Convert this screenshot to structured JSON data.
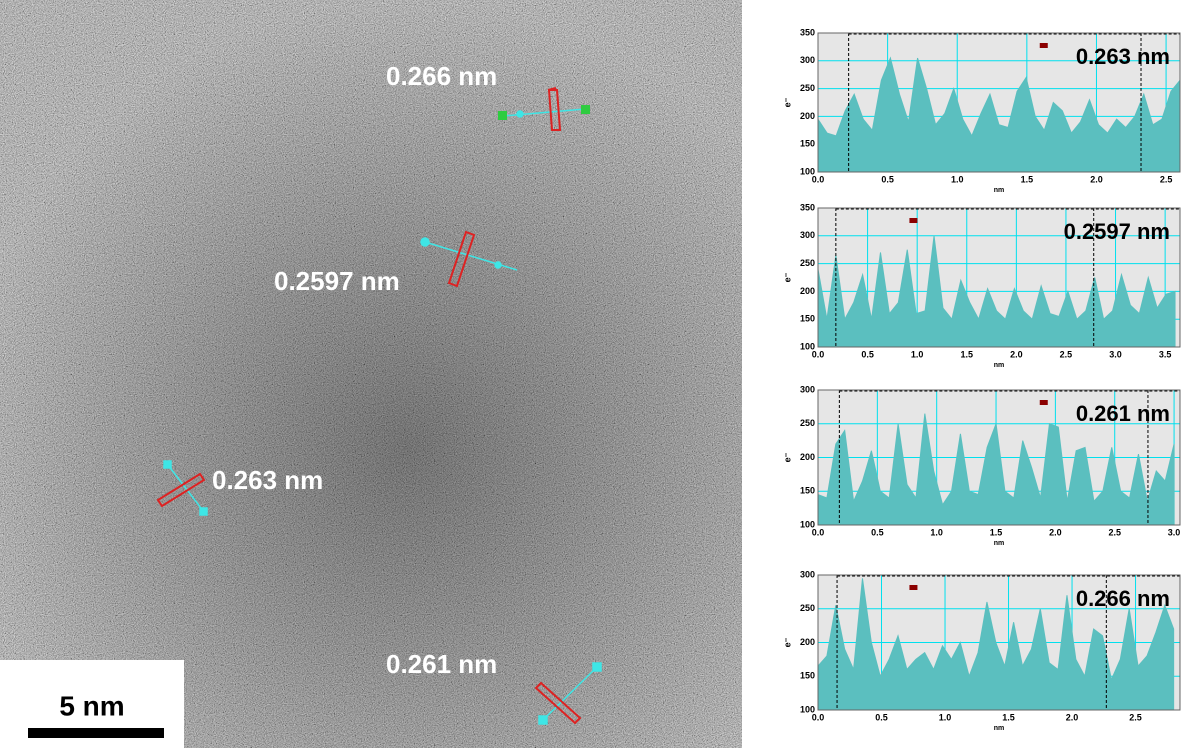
{
  "image": {
    "annotations": [
      "0.266 nm",
      "0.2597 nm",
      "0.263 nm",
      "0.261 nm"
    ],
    "scale_bar": "5 nm"
  },
  "chart_data": [
    {
      "type": "area",
      "annotation": "0.263 nm",
      "x_label": "nm",
      "y_label": "e⁻",
      "color": "#5bbfbf",
      "grid": true,
      "xlim": [
        0,
        2.6
      ],
      "ylim": [
        100,
        350
      ],
      "xticks": [
        {
          "value": 0,
          "label": "0.0"
        },
        0.5,
        {
          "value": 1,
          "label": "1.0"
        },
        1.5,
        {
          "value": 2,
          "label": "2.0"
        },
        2.5
      ],
      "yticks": [
        100,
        150,
        200,
        250,
        300,
        350
      ],
      "reference_lines": [
        0.22,
        2.32
      ],
      "x": [
        0,
        0.065,
        0.13,
        0.195,
        0.26,
        0.325,
        0.39,
        0.455,
        0.52,
        0.585,
        0.65,
        0.715,
        0.78,
        0.845,
        0.91,
        0.975,
        1.04,
        1.105,
        1.17,
        1.235,
        1.3,
        1.365,
        1.43,
        1.495,
        1.56,
        1.625,
        1.69,
        1.755,
        1.82,
        1.885,
        1.95,
        2.015,
        2.08,
        2.145,
        2.21,
        2.275,
        2.34,
        2.405,
        2.47,
        2.535,
        2.6
      ],
      "values": [
        195,
        170,
        165,
        210,
        240,
        195,
        175,
        265,
        305,
        240,
        190,
        305,
        250,
        185,
        205,
        250,
        195,
        165,
        205,
        240,
        185,
        180,
        245,
        270,
        200,
        175,
        225,
        210,
        170,
        190,
        230,
        185,
        170,
        195,
        180,
        200,
        240,
        185,
        195,
        245,
        265
      ]
    },
    {
      "type": "area",
      "annotation": "0.2597 nm",
      "x_label": "nm",
      "y_label": "e⁻",
      "color": "#5bbfbf",
      "grid": true,
      "xlim": [
        0,
        3.65
      ],
      "ylim": [
        100,
        350
      ],
      "xticks": [
        {
          "value": 0,
          "label": "0.0"
        },
        0.5,
        {
          "value": 1,
          "label": "1.0"
        },
        1.5,
        {
          "value": 2,
          "label": "2.0"
        },
        2.5,
        {
          "value": 3,
          "label": "3.0"
        },
        3.5
      ],
      "yticks": [
        100,
        150,
        200,
        250,
        300,
        350
      ],
      "reference_lines": [
        0.18,
        2.78
      ],
      "x": [
        0,
        0.09,
        0.18,
        0.27,
        0.36,
        0.45,
        0.54,
        0.63,
        0.72,
        0.81,
        0.9,
        0.99,
        1.08,
        1.17,
        1.26,
        1.35,
        1.44,
        1.53,
        1.62,
        1.71,
        1.8,
        1.89,
        1.98,
        2.07,
        2.16,
        2.25,
        2.34,
        2.43,
        2.52,
        2.61,
        2.7,
        2.79,
        2.88,
        2.97,
        3.06,
        3.15,
        3.24,
        3.33,
        3.42,
        3.51,
        3.6
      ],
      "values": [
        240,
        150,
        265,
        150,
        180,
        230,
        150,
        270,
        160,
        180,
        275,
        160,
        165,
        300,
        170,
        150,
        220,
        180,
        150,
        205,
        165,
        150,
        205,
        165,
        150,
        210,
        160,
        155,
        200,
        150,
        165,
        225,
        150,
        165,
        230,
        175,
        160,
        225,
        170,
        195,
        200
      ]
    },
    {
      "type": "area",
      "annotation": "0.261 nm",
      "x_label": "nm",
      "y_label": "e⁻",
      "color": "#5bbfbf",
      "grid": true,
      "xlim": [
        0,
        3.05
      ],
      "ylim": [
        100,
        300
      ],
      "xticks": [
        {
          "value": 0,
          "label": "0.0"
        },
        0.5,
        {
          "value": 1,
          "label": "1.0"
        },
        1.5,
        {
          "value": 2,
          "label": "2.0"
        },
        2.5,
        {
          "value": 3,
          "label": "3.0"
        }
      ],
      "yticks": [
        100,
        150,
        200,
        250,
        300
      ],
      "reference_lines": [
        0.18,
        2.78
      ],
      "x": [
        0,
        0.075,
        0.15,
        0.225,
        0.3,
        0.375,
        0.45,
        0.525,
        0.6,
        0.675,
        0.75,
        0.825,
        0.9,
        0.975,
        1.05,
        1.125,
        1.2,
        1.275,
        1.35,
        1.425,
        1.5,
        1.575,
        1.65,
        1.725,
        1.8,
        1.875,
        1.95,
        2.025,
        2.1,
        2.175,
        2.25,
        2.325,
        2.4,
        2.475,
        2.55,
        2.625,
        2.7,
        2.775,
        2.85,
        2.925,
        3.0
      ],
      "values": [
        145,
        140,
        220,
        240,
        135,
        165,
        210,
        150,
        140,
        250,
        160,
        140,
        265,
        180,
        130,
        150,
        235,
        150,
        145,
        215,
        250,
        150,
        140,
        225,
        185,
        140,
        250,
        245,
        135,
        210,
        215,
        135,
        150,
        215,
        150,
        140,
        205,
        135,
        180,
        165,
        220
      ]
    },
    {
      "type": "area",
      "annotation": "0.266 nm",
      "x_label": "nm",
      "y_label": "e⁻",
      "color": "#5bbfbf",
      "grid": true,
      "xlim": [
        0,
        2.85
      ],
      "ylim": [
        100,
        300
      ],
      "xticks": [
        {
          "value": 0,
          "label": "0.0"
        },
        0.5,
        {
          "value": 1,
          "label": "1.0"
        },
        1.5,
        {
          "value": 2,
          "label": "2.0"
        },
        2.5
      ],
      "yticks": [
        100,
        150,
        200,
        250,
        300
      ],
      "reference_lines": [
        0.15,
        2.27
      ],
      "x": [
        0,
        0.07,
        0.14,
        0.21,
        0.28,
        0.35,
        0.42,
        0.49,
        0.56,
        0.63,
        0.7,
        0.77,
        0.84,
        0.91,
        0.98,
        1.05,
        1.12,
        1.19,
        1.26,
        1.33,
        1.4,
        1.47,
        1.54,
        1.61,
        1.68,
        1.75,
        1.82,
        1.89,
        1.96,
        2.03,
        2.1,
        2.17,
        2.24,
        2.31,
        2.38,
        2.45,
        2.52,
        2.59,
        2.66,
        2.73,
        2.8
      ],
      "values": [
        165,
        180,
        255,
        190,
        160,
        295,
        200,
        150,
        175,
        210,
        160,
        175,
        185,
        160,
        195,
        175,
        200,
        150,
        185,
        260,
        200,
        165,
        230,
        165,
        190,
        250,
        170,
        160,
        270,
        175,
        150,
        220,
        210,
        145,
        175,
        250,
        165,
        180,
        215,
        255,
        220
      ]
    }
  ]
}
